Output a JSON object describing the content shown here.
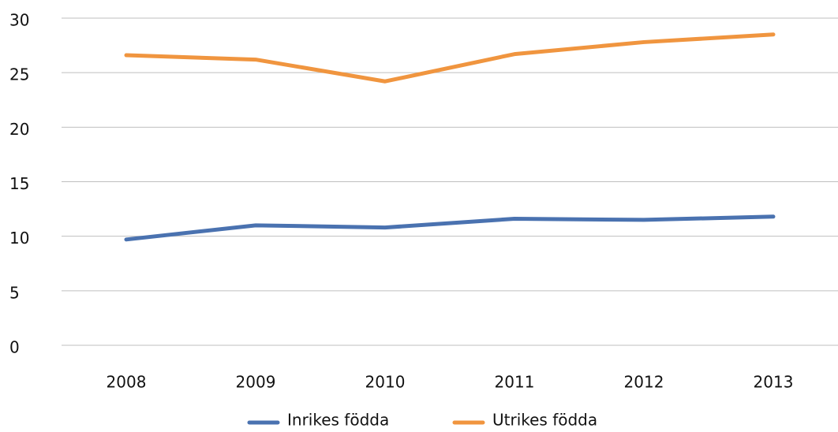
{
  "chart_data": {
    "type": "line",
    "categories": [
      "2008",
      "2009",
      "2010",
      "2011",
      "2012",
      "2013"
    ],
    "series": [
      {
        "name": "Inrikes födda",
        "color": "#4a72b0",
        "values": [
          9.7,
          11.0,
          10.8,
          11.6,
          11.5,
          11.8
        ]
      },
      {
        "name": "Utrikes födda",
        "color": "#f0953f",
        "values": [
          26.6,
          26.2,
          24.2,
          26.7,
          27.8,
          28.5
        ]
      }
    ],
    "ylim": [
      0,
      30
    ],
    "yticks": [
      0,
      5,
      10,
      15,
      20,
      25,
      30
    ],
    "grid": true,
    "legend": "bottom"
  }
}
